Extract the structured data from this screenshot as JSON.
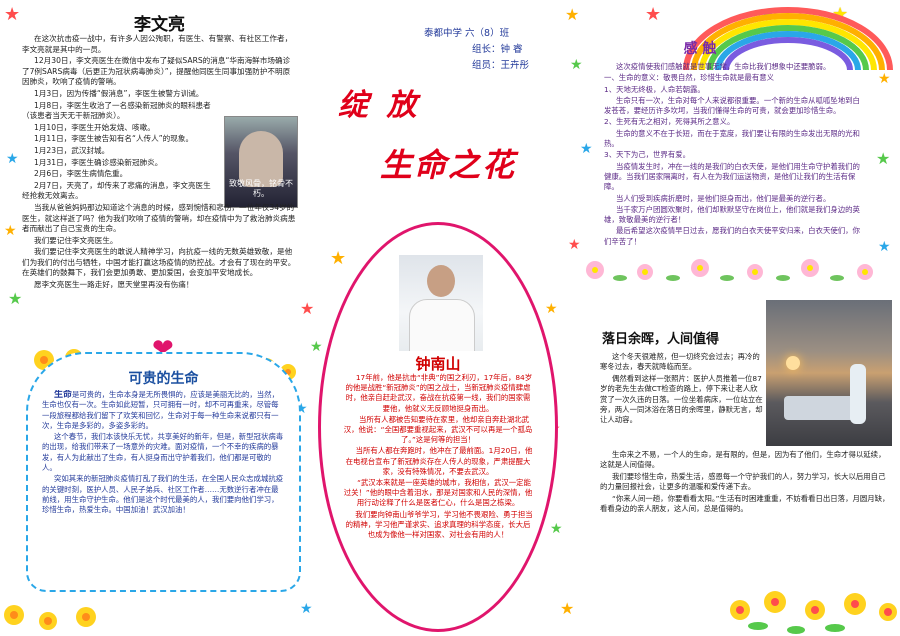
{
  "header": {
    "school": "泰都中学 六（8）班",
    "leader": "组长：钟 睿",
    "member": "组员：王卉彤",
    "title_line1": "绽 放",
    "title_line2": "生命之花"
  },
  "li": {
    "title": "李文亮",
    "photo_caption": "致敬风骨，铭骨不朽。",
    "paragraphs": [
      "在这次抗击疫一战中，有许多人因公殉职，有医生、有警察、有社区工作者，李文亮就是其中的一员。",
      "12月30日，李文亮医生在微信中发布了疑似SARS的消息“华南海鲜市场确诊了7例SARS病毒（后更正为冠状病毒肺炎）”，提醒他同医生同事加强防护不明原因肺炎，吹响了疫情的警哨。",
      "1月3日，因为传播“假消息”，李医生被警方训诫。",
      "1月8日，李医生收治了一名感染新冠肺炎的眼科患者（该患者当天无干新冠肺炎）。",
      "1月10日，李医生开始发烧、咳嗽。",
      "1月11日，李医生被告知有名“人传人”的现象。",
      "1月23日，武汉封城。",
      "1月31日，李医生确诊感染新冠肺炎。",
      "2月6日，李医生病情危重。",
      "2月7日，天亮了，却传来了悲痛的消息，李文亮医生经抢救无效离去。",
      "当我从爸爸妈妈那边知道这个消息的时候，感到惋惜和悲伤，一位年仅34岁的医生，就这样逝了吗？他为我们吹响了疫情的警哨，却在疫情中为了救治肺炎病患者而献出了自己宝贵的生命。",
      "我们要记住李文亮医生。",
      "我们要记住李文亮医生的敢说人精神学习，向抗疫一线的无数英雄致敬，是他们为我们的付出与牺牲，中国才能打赢这场疫情的防控战。才会有了现在的平安。在英雄们的鼓舞下，我们会更加勇敢、更加爱国，会变加平安地成长。",
      "愿李文亮医生一路走好，愿天堂里再没有伤痛！"
    ]
  },
  "precious": {
    "title": "可贵的生命",
    "lead_word": "生命",
    "paragraphs": [
      "是可贵的，生命本身是无所畏惧的，应该是美丽无比的，当然，生命也仅有一次。生命如此短暂，只可拥有一时，却不可再重来，尽管每一段旅程都给我们留下了欢笑和回忆，生命对于每一种生命来说都只有一次，生命是多彩的，多姿多彩的。",
      "这个春节，我们本该快乐无忧，共享美好的新年，但是，新型冠状病毒的出现，给我们带来了一场意外的灾难。面对疫情，一个不幸的疾病的暴发，有人为此献出了生命，有人挺身而出守护着我们，他们都是可敬的人。",
      "突如其来的新冠肺炎疫情打乱了我们的生活，在全国人民众志成城抗疫的关键时刻，医护人员、人民子弟兵、社区工作者……无数逆行者冲在最前线，用生命守护生命。他们是这个时代最美的人，我们要向他们学习，珍惜生命，热爱生命。中国加油！武汉加油！"
    ]
  },
  "zhong": {
    "name": "钟南山",
    "paragraphs": [
      "17年前，他是抗击“非典”的国之利刃，17年后，84岁的他是战胜“新冠肺炎”的国之战士，当新冠肺炎疫情肆虐时，他亲自赶赴武汉，奋战在抗疫第一线，我们的国家需要他，他就义无反顾地挺身而出。",
      "当所有人都被告知要待在家里，他却亲自奔赴湖北武汉，他说：“全国都要重视起来，武汉不可以再是一个孤岛了。”这是何等的担当！",
      "当所有人都在奔跑时，他冲在了最前面。1月20日，他在电视台宣布了新冠肺炎存在人传人的现象，严肃提醒大家，没有特殊情况，不要去武汉。",
      "“武汉本来就是一座英雄的城市，我相信，武汉一定能过关！”他的眼中含着泪水，那是对国家和人民的深情，他用行动诠释了什么是医者仁心，什么是国之栋梁。",
      "我们要向钟南山爷爷学习，学习他不畏艰险、勇于担当的精神，学习他严谨求实、追求真理的科学态度，长大后也成为像他一样对国家、对社会有用的人！"
    ]
  },
  "touch": {
    "title": "感 触",
    "paragraphs": [
      "这次疫情使我们感触就是世事无常，生命比我们想象中还要脆弱。",
      "一、生命的意义：敬畏自然，珍惜生命就是最有意义",
      "1、天地无终极，人命若朝露。",
      "生命只有一次，生命对每个人来说都很重要。一个新的生命从呱呱坠地到白发苍苍，要经历许多坎坷，当我们懂得生命的可贵，就会更加珍惜生命。",
      "2、生死有无之相对，死得其所之意义。",
      "生命的意义不在于长短，而在于宽度，我们要让有限的生命发出无限的光和热。",
      "3、天下为己，世界有爱。",
      "当疫情发生时，冲在一线的是我们的白衣天使，是他们用生命守护着我们的健康。当我们居家隔离时，有人在为我们运送物资，是他们让我们的生活有保障。",
      "当人们受到疾病折磨时，是他们挺身而出，他们是最美的逆行者。",
      "当千家万户团圆欢聚时，他们却默默坚守在岗位上，他们就是我们身边的英雄，致敬最美的逆行者！",
      "最后希望这次疫情早日过去，愿我们的白衣天使平安归来，白衣天使们，你们辛苦了！"
    ]
  },
  "sunset": {
    "title": "落日余晖，人间值得",
    "paragraphs": [
      "这个冬天很难熬，但一切终究会过去；再冷的寒冬过去，春天就降临而至。",
      "偶然看到这样一张照片：医护人员推着一位87岁的老先生去做CT检查的路上，停下来让老人欣赏了一次久违的日落。一位坐着病床，一位站立在旁，两人一同沐浴在落日的余晖里，静默无言，却让人动容。",
      "生命来之不易，一个人的生命，是有限的，但是，因为有了他们，生命才得以延续，这就是人间值得。",
      "我们要珍惜生命，热爱生活，感恩每一个守护我们的人，努力学习，长大以后用自己的力量回报社会，让更多的温暖和爱传递下去。",
      "“你来人间一趟，你要看看太阳。”生活有时困难重重，不妨看看日出日落，月圆月缺，看看身边的亲人朋友，这人间，总是值得的。"
    ]
  },
  "colors": {
    "title_red": "#e0001a",
    "heading_purple": "#7a2aa8",
    "frame_pink": "#e0156c",
    "blue_text": "#233a9a",
    "rainbow": [
      "#ff5a5a",
      "#ffb000",
      "#ffe600",
      "#56c94b",
      "#2aa7e8",
      "#7a5ce0"
    ]
  }
}
